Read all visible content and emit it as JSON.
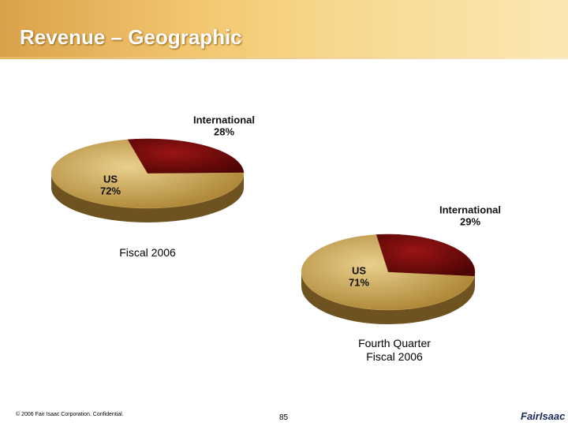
{
  "title": "Revenue – Geographic",
  "chart_data": [
    {
      "type": "pie",
      "title": "Fiscal 2006",
      "categories": [
        "US",
        "International"
      ],
      "values": [
        72,
        28
      ],
      "value_labels": [
        "72%",
        "28%"
      ],
      "colors": [
        "#c9a256",
        "#7a0b0b"
      ]
    },
    {
      "type": "pie",
      "title": "Fourth Quarter Fiscal 2006",
      "categories": [
        "US",
        "International"
      ],
      "values": [
        71,
        29
      ],
      "value_labels": [
        "71%",
        "29%"
      ],
      "colors": [
        "#c9a256",
        "#7a0b0b"
      ]
    }
  ],
  "footer": "© 2006 Fair Isaac Corporation. Confidential.",
  "page_number": "85",
  "logo": "FairIsaac"
}
